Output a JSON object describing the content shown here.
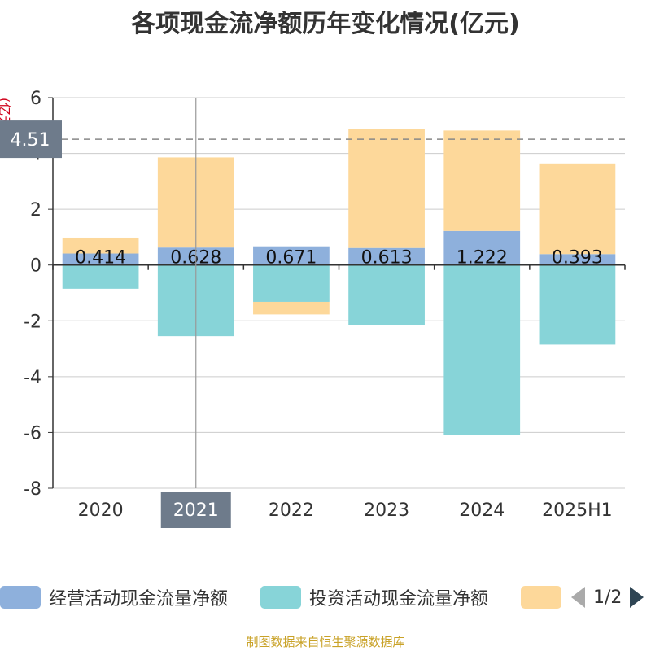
{
  "title": "各项现金流净额历年变化情况(亿元)",
  "source": "制图数据来自恒生聚源数据库",
  "pointer": {
    "y_value_label": "4.51",
    "x_label": "2021"
  },
  "legend": {
    "items": [
      {
        "label": "经营活动现金流量净额",
        "color": "#8eb0dc"
      },
      {
        "label": "投资活动现金流量净额",
        "color": "#87d4d8"
      },
      {
        "label": "",
        "color": "#fdd89a"
      }
    ],
    "page": "1/2"
  },
  "chart_data": {
    "type": "bar",
    "stacked": true,
    "categories": [
      "2020",
      "2021",
      "2022",
      "2023",
      "2024",
      "2025H1"
    ],
    "ylabel": "(亿元)",
    "ylim": [
      -8,
      6
    ],
    "yticks": [
      6,
      4,
      2,
      0,
      -2,
      -4,
      -6,
      -8
    ],
    "grid": true,
    "legend_position": "bottom",
    "reference_line": 4.51,
    "series": [
      {
        "name": "经营活动现金流量净额",
        "color": "#8eb0dc",
        "values": [
          0.414,
          0.628,
          0.671,
          0.613,
          1.222,
          0.393
        ],
        "data_labels": [
          "0.414",
          "0.628",
          "0.671",
          "0.613",
          "1.222",
          "0.393"
        ]
      },
      {
        "name": "投资活动现金流量净额",
        "color": "#87d4d8",
        "values": [
          -0.85,
          -2.55,
          -1.32,
          -2.15,
          -6.1,
          -2.85
        ]
      },
      {
        "color": "#fdd89a",
        "values": [
          0.57,
          3.23,
          -0.45,
          4.25,
          3.6,
          3.25
        ]
      }
    ]
  }
}
